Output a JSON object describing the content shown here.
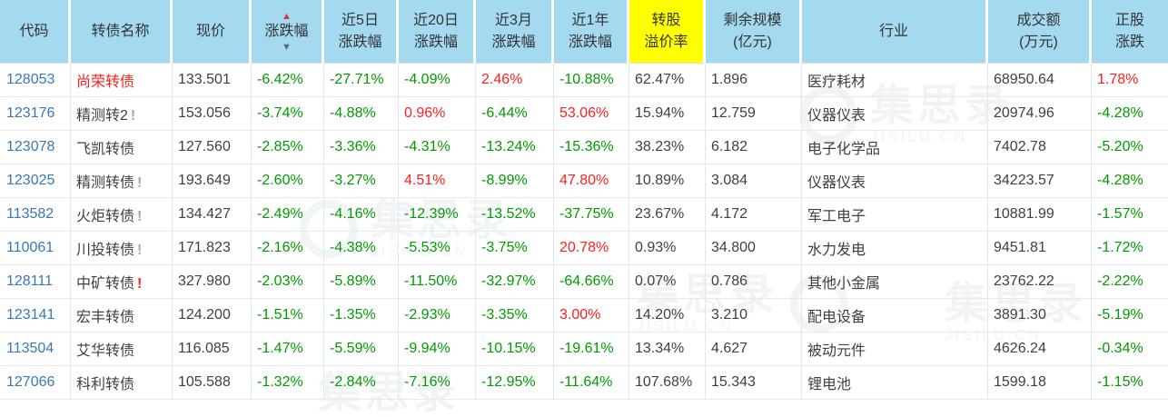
{
  "colors": {
    "header_bg": "#a4daf0",
    "premium_header_bg": "#ffff00",
    "rise_red": "#ff1e1e",
    "fall_green": "#009b00",
    "code_link_blue": "#3679b5",
    "body_text": "#404040"
  },
  "watermark": {
    "cn": "集思录",
    "en": "JISILU.CN"
  },
  "table": {
    "sort_icons": {
      "up": "▲",
      "down": "▼"
    },
    "alert_glyph": "!",
    "headers": [
      {
        "id": "code",
        "label": "代码"
      },
      {
        "id": "name",
        "label": "转债名称"
      },
      {
        "id": "price",
        "label": "现价"
      },
      {
        "id": "change",
        "label": "涨跌幅",
        "sort": true
      },
      {
        "id": "chg5d",
        "label": "近5日\n涨跌幅"
      },
      {
        "id": "chg20d",
        "label": "近20日\n涨跌幅"
      },
      {
        "id": "chg3m",
        "label": "近3月\n涨跌幅"
      },
      {
        "id": "chg1y",
        "label": "近1年\n涨跌幅"
      },
      {
        "id": "premium",
        "label": "转股\n溢价率",
        "highlight": true
      },
      {
        "id": "remain",
        "label": "剩余规模\n(亿元)"
      },
      {
        "id": "industry",
        "label": "行业"
      },
      {
        "id": "turnover",
        "label": "成交额\n(万元)"
      },
      {
        "id": "stock_chg",
        "label": "正股\n涨跌"
      }
    ],
    "change_columns": [
      "change",
      "chg5d",
      "chg20d",
      "chg3m",
      "chg1y",
      "stock_chg"
    ],
    "rows": [
      {
        "code": "128053",
        "name": "尚荣转债",
        "name_red": true,
        "alert": "",
        "price": "133.501",
        "change": "-6.42%",
        "chg5d": "-27.71%",
        "chg20d": "-4.09%",
        "chg3m": "2.46%",
        "chg1y": "-10.88%",
        "premium": "62.47%",
        "remain": "1.896",
        "industry": "医疗耗材",
        "turnover": "68950.64",
        "stock_chg": "1.78%"
      },
      {
        "code": "123176",
        "name": "精测转2",
        "name_red": false,
        "alert": "grey",
        "price": "153.056",
        "change": "-3.74%",
        "chg5d": "-4.88%",
        "chg20d": "0.96%",
        "chg3m": "-6.44%",
        "chg1y": "53.06%",
        "premium": "15.94%",
        "remain": "12.759",
        "industry": "仪器仪表",
        "turnover": "20974.96",
        "stock_chg": "-4.28%"
      },
      {
        "code": "123078",
        "name": "飞凯转债",
        "name_red": false,
        "alert": "",
        "price": "127.560",
        "change": "-2.85%",
        "chg5d": "-3.36%",
        "chg20d": "-4.31%",
        "chg3m": "-13.24%",
        "chg1y": "-15.36%",
        "premium": "38.23%",
        "remain": "6.182",
        "industry": "电子化学品",
        "turnover": "7402.78",
        "stock_chg": "-5.20%"
      },
      {
        "code": "123025",
        "name": "精测转债",
        "name_red": false,
        "alert": "grey",
        "price": "193.649",
        "change": "-2.60%",
        "chg5d": "-3.27%",
        "chg20d": "4.51%",
        "chg3m": "-8.99%",
        "chg1y": "47.80%",
        "premium": "10.89%",
        "remain": "3.084",
        "industry": "仪器仪表",
        "turnover": "34223.57",
        "stock_chg": "-4.28%"
      },
      {
        "code": "113582",
        "name": "火炬转债",
        "name_red": false,
        "alert": "grey",
        "price": "134.427",
        "change": "-2.49%",
        "chg5d": "-4.16%",
        "chg20d": "-12.39%",
        "chg3m": "-13.52%",
        "chg1y": "-37.75%",
        "premium": "23.67%",
        "remain": "4.172",
        "industry": "军工电子",
        "turnover": "10881.99",
        "stock_chg": "-1.57%"
      },
      {
        "code": "110061",
        "name": "川投转债",
        "name_red": false,
        "alert": "grey",
        "price": "171.823",
        "change": "-2.16%",
        "chg5d": "-4.38%",
        "chg20d": "-5.53%",
        "chg3m": "-3.75%",
        "chg1y": "20.78%",
        "premium": "0.93%",
        "remain": "34.800",
        "industry": "水力发电",
        "turnover": "9451.81",
        "stock_chg": "-1.72%"
      },
      {
        "code": "128111",
        "name": "中矿转债",
        "name_red": false,
        "alert": "red",
        "price": "327.980",
        "change": "-2.03%",
        "chg5d": "-5.89%",
        "chg20d": "-11.50%",
        "chg3m": "-32.97%",
        "chg1y": "-64.66%",
        "premium": "0.07%",
        "remain": "0.786",
        "industry": "其他小金属",
        "turnover": "23762.22",
        "stock_chg": "-2.22%"
      },
      {
        "code": "123141",
        "name": "宏丰转债",
        "name_red": false,
        "alert": "",
        "price": "124.200",
        "change": "-1.51%",
        "chg5d": "-1.35%",
        "chg20d": "-2.93%",
        "chg3m": "-3.35%",
        "chg1y": "3.00%",
        "premium": "14.20%",
        "remain": "3.210",
        "industry": "配电设备",
        "turnover": "3891.30",
        "stock_chg": "-5.19%"
      },
      {
        "code": "113504",
        "name": "艾华转债",
        "name_red": false,
        "alert": "",
        "price": "116.085",
        "change": "-1.47%",
        "chg5d": "-5.59%",
        "chg20d": "-9.94%",
        "chg3m": "-10.15%",
        "chg1y": "-19.61%",
        "premium": "13.34%",
        "remain": "4.627",
        "industry": "被动元件",
        "turnover": "4626.24",
        "stock_chg": "-0.34%"
      },
      {
        "code": "127066",
        "name": "科利转债",
        "name_red": false,
        "alert": "",
        "price": "105.588",
        "change": "-1.32%",
        "chg5d": "-2.84%",
        "chg20d": "-7.16%",
        "chg3m": "-12.95%",
        "chg1y": "-11.64%",
        "premium": "107.68%",
        "remain": "15.343",
        "industry": "锂电池",
        "turnover": "1599.18",
        "stock_chg": "-1.15%"
      }
    ]
  }
}
